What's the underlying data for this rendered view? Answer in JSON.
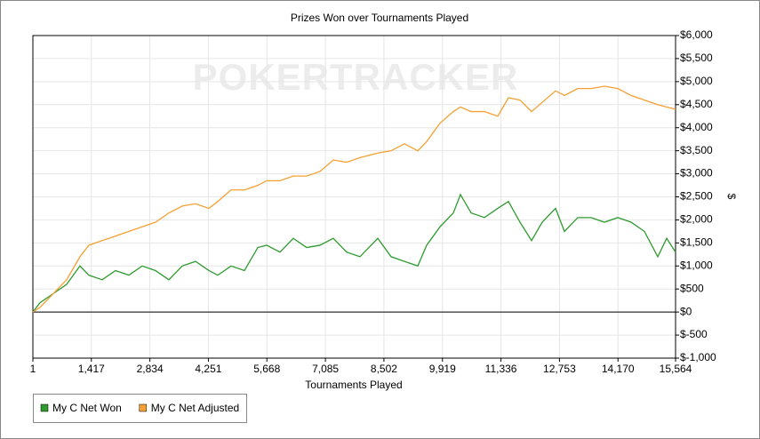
{
  "chart_data": {
    "type": "line",
    "title": "Prizes Won over Tournaments Played",
    "watermark": "POKERTRACKER",
    "xlabel": "Tournaments Played",
    "ylabel": "$",
    "x": [
      1,
      172,
      495,
      818,
      1141,
      1356,
      1679,
      2002,
      2325,
      2648,
      2971,
      3294,
      3617,
      3940,
      4263,
      4478,
      4801,
      5124,
      5447,
      5662,
      5985,
      6308,
      6630,
      6953,
      7276,
      7599,
      7922,
      8353,
      8676,
      8999,
      9322,
      9537,
      9860,
      10183,
      10355,
      10613,
      10936,
      11259,
      11517,
      11797,
      12077,
      12335,
      12658,
      12873,
      13196,
      13519,
      13842,
      14165,
      14488,
      14810,
      15133,
      15349,
      15564
    ],
    "series": [
      {
        "name": "My C Net Won",
        "color": "#2e9b2e",
        "values": [
          0,
          200,
          400,
          600,
          1000,
          800,
          700,
          900,
          800,
          1000,
          900,
          700,
          1000,
          1100,
          900,
          800,
          1000,
          900,
          1400,
          1450,
          1300,
          1600,
          1400,
          1450,
          1600,
          1300,
          1200,
          1600,
          1200,
          1100,
          1000,
          1450,
          1850,
          2150,
          2550,
          2150,
          2050,
          2250,
          2400,
          1950,
          1550,
          1950,
          2250,
          1750,
          2050,
          2050,
          1950,
          2050,
          1950,
          1750,
          1200,
          1600,
          1300
        ]
      },
      {
        "name": "My C Net Adjusted",
        "color": "#f5a032",
        "values": [
          0,
          100,
          400,
          700,
          1200,
          1450,
          1550,
          1650,
          1750,
          1850,
          1950,
          2150,
          2300,
          2350,
          2250,
          2400,
          2650,
          2650,
          2750,
          2850,
          2850,
          2950,
          2950,
          3050,
          3300,
          3250,
          3350,
          3450,
          3500,
          3650,
          3500,
          3700,
          4100,
          4350,
          4450,
          4350,
          4350,
          4250,
          4650,
          4600,
          4350,
          4550,
          4800,
          4700,
          4850,
          4850,
          4900,
          4850,
          4700,
          4600,
          4500,
          4450,
          4400
        ]
      }
    ],
    "xlim": [
      1,
      15564
    ],
    "xticks": [
      1,
      {
        "value": 1417,
        "label": "1,417"
      },
      {
        "value": 2834,
        "label": "2,834"
      },
      {
        "value": 4251,
        "label": "4,251"
      },
      {
        "value": 5668,
        "label": "5,668"
      },
      {
        "value": 7085,
        "label": "7,085"
      },
      {
        "value": 8502,
        "label": "8,502"
      },
      {
        "value": 9919,
        "label": "9,919"
      },
      {
        "value": 11336,
        "label": "11,336"
      },
      {
        "value": 12753,
        "label": "12,753"
      },
      {
        "value": 14170,
        "label": "14,170"
      },
      {
        "value": 15564,
        "label": "15,564"
      }
    ],
    "ylim": [
      -1000,
      6000
    ],
    "yticks": [
      {
        "value": -1000,
        "label": "$-1,000"
      },
      {
        "value": -500,
        "label": "$-500"
      },
      {
        "value": 0,
        "label": "$0"
      },
      {
        "value": 500,
        "label": "$500"
      },
      {
        "value": 1000,
        "label": "$1,000"
      },
      {
        "value": 1500,
        "label": "$1,500"
      },
      {
        "value": 2000,
        "label": "$2,000"
      },
      {
        "value": 2500,
        "label": "$2,500"
      },
      {
        "value": 3000,
        "label": "$3,000"
      },
      {
        "value": 3500,
        "label": "$3,500"
      },
      {
        "value": 4000,
        "label": "$4,000"
      },
      {
        "value": 4500,
        "label": "$4,500"
      },
      {
        "value": 5000,
        "label": "$5,000"
      },
      {
        "value": 5500,
        "label": "$5,500"
      },
      {
        "value": 6000,
        "label": "$6,000"
      }
    ],
    "grid": true,
    "legend": "bottom-left"
  }
}
